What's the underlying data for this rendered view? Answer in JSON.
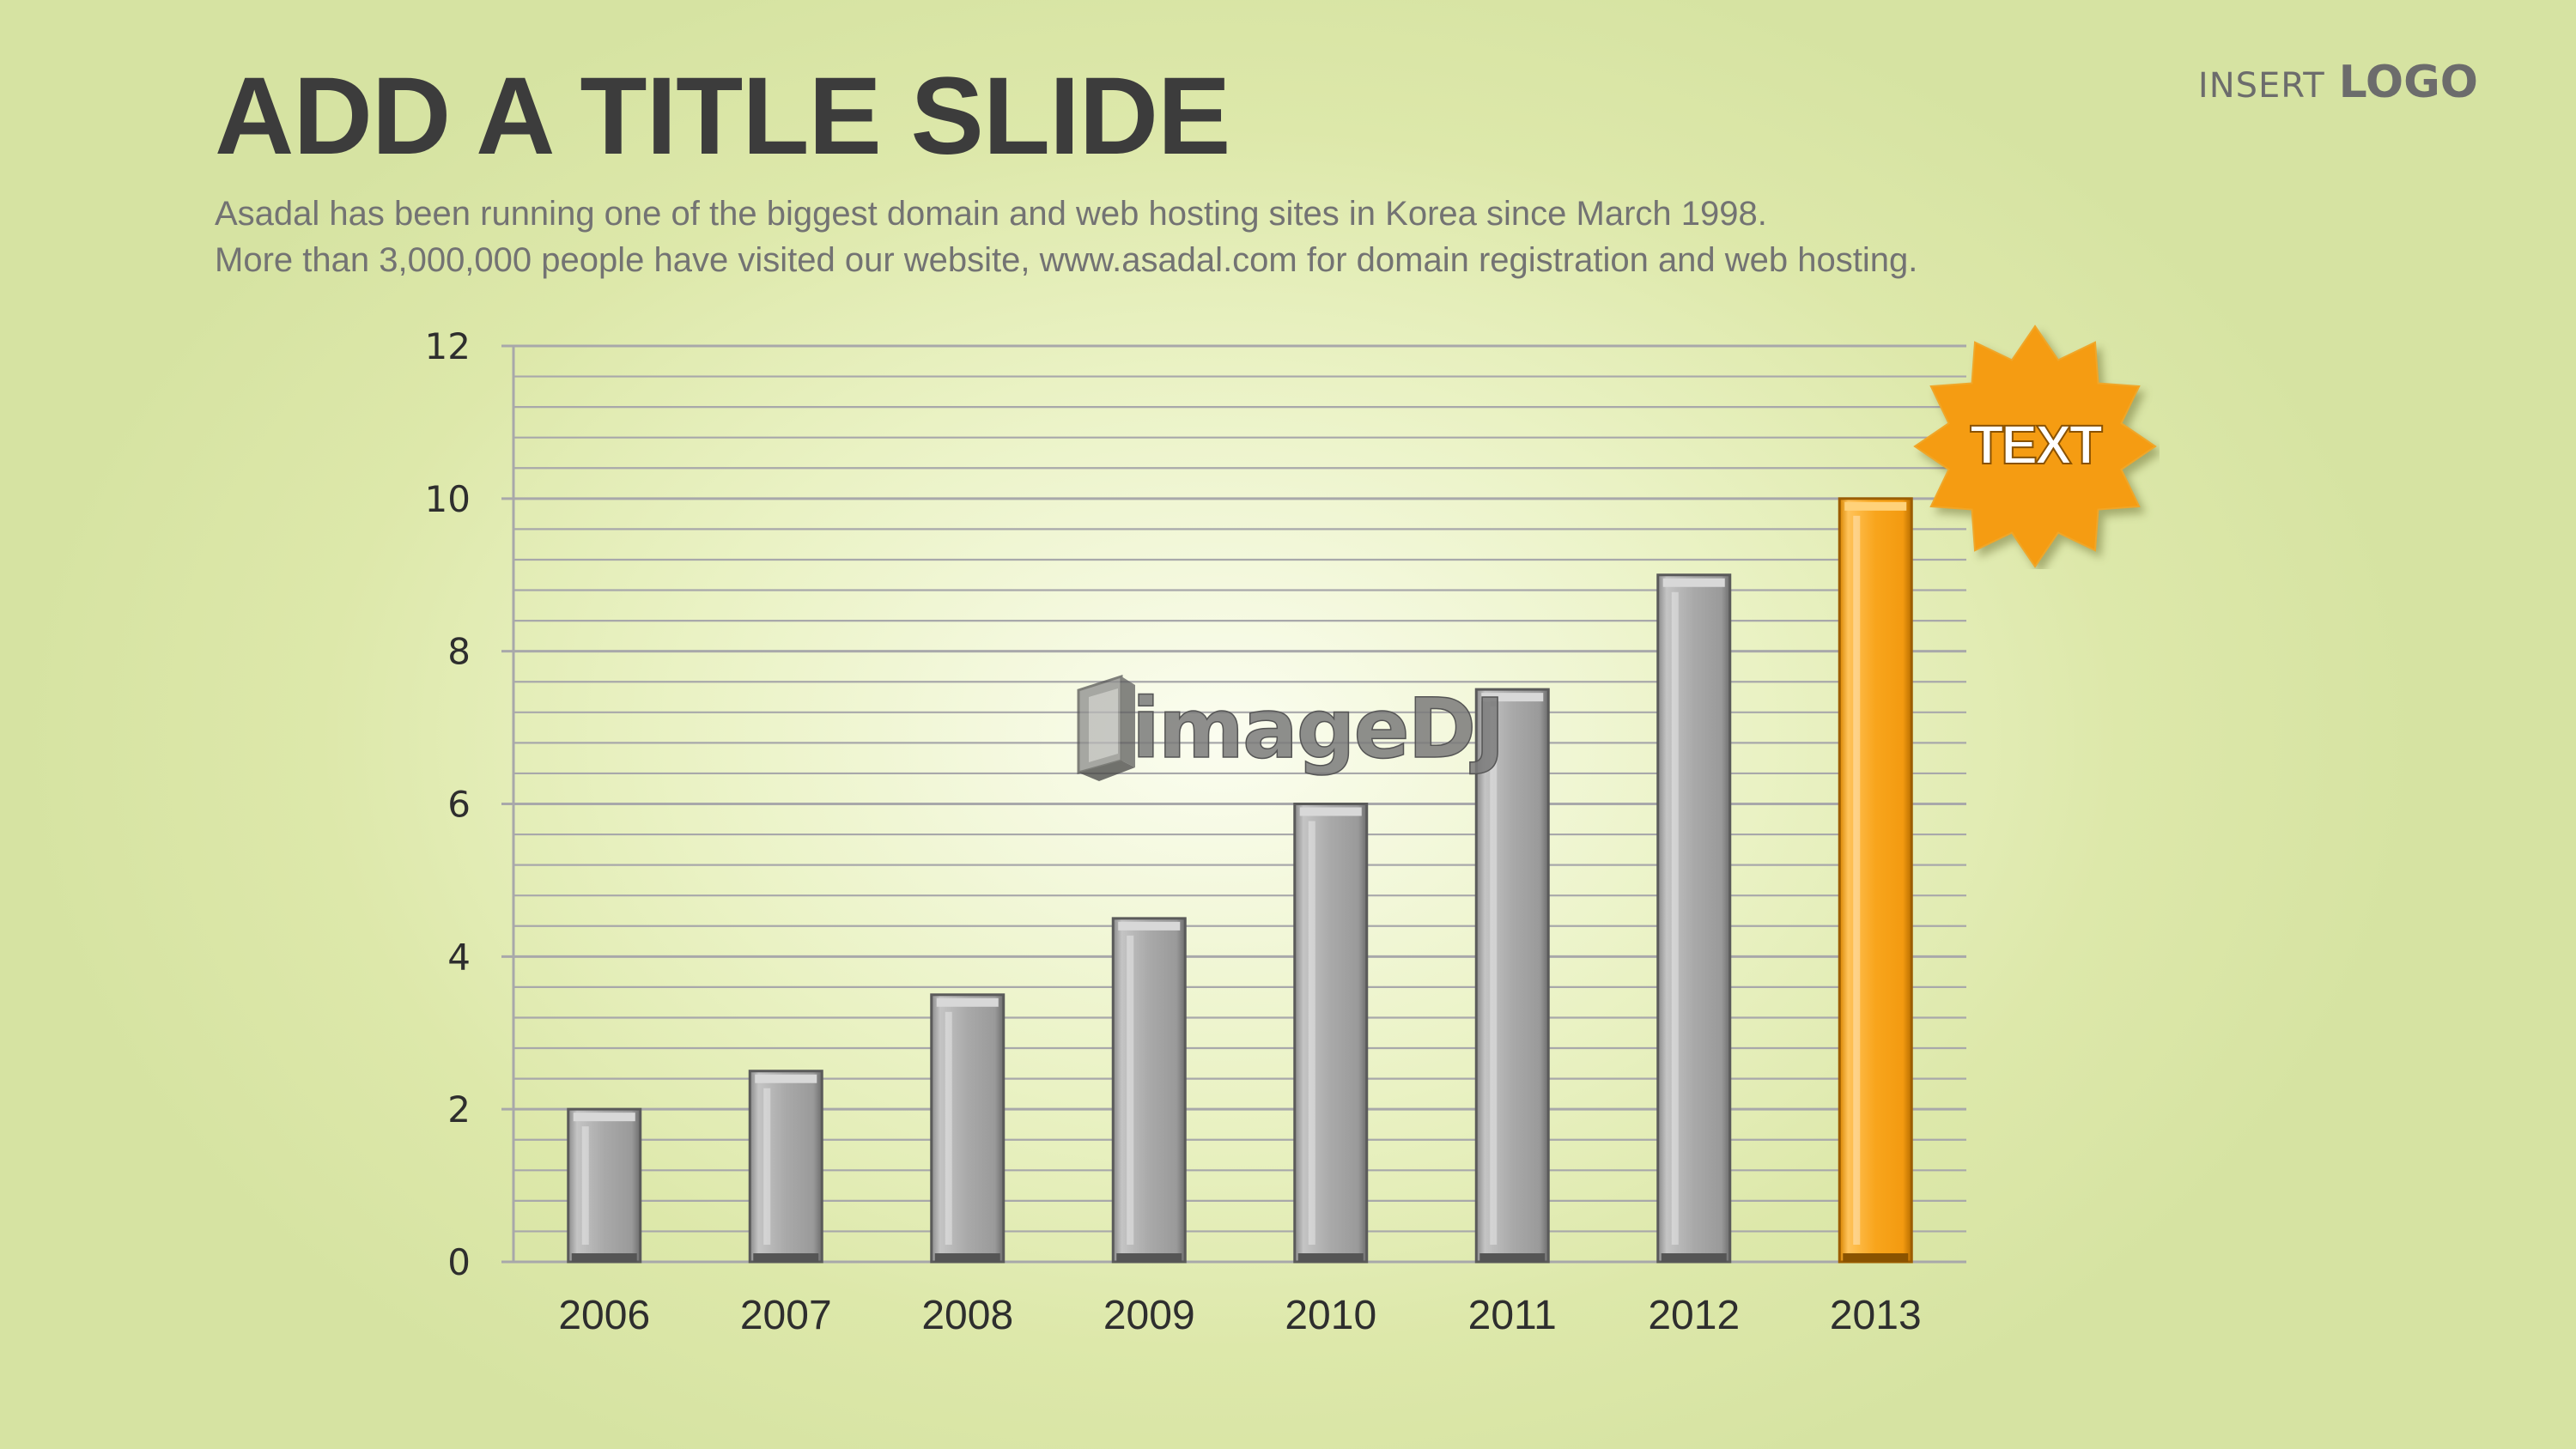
{
  "slide": {
    "title": "ADD A TITLE SLIDE",
    "subtitle_lines": [
      "Asadal has been running one of the biggest domain and web hosting sites in Korea since March 1998.",
      "More than 3,000,000 people have visited our website,  www.asadal.com for domain registration and web hosting."
    ],
    "logo_insert": "INSERT",
    "logo_text": "LOGO",
    "badge_text": "TEXT",
    "watermark_text": "imageDJ"
  },
  "colors": {
    "bar": "#a5a5a5",
    "bar_highlight": "#f7a21b",
    "grid": "#a8a8aa",
    "badge": "#f59c12"
  },
  "chart_data": {
    "type": "bar",
    "categories": [
      "2006",
      "2007",
      "2008",
      "2009",
      "2010",
      "2011",
      "2012",
      "2013"
    ],
    "values": [
      2,
      2.5,
      3.5,
      4.5,
      6,
      7.5,
      9,
      10
    ],
    "highlight_index": 7,
    "ylim": [
      0,
      12
    ],
    "yticks": [
      0,
      2,
      4,
      6,
      8,
      10,
      12
    ],
    "minor_step": 0.4,
    "grid": true,
    "legend": "none"
  }
}
